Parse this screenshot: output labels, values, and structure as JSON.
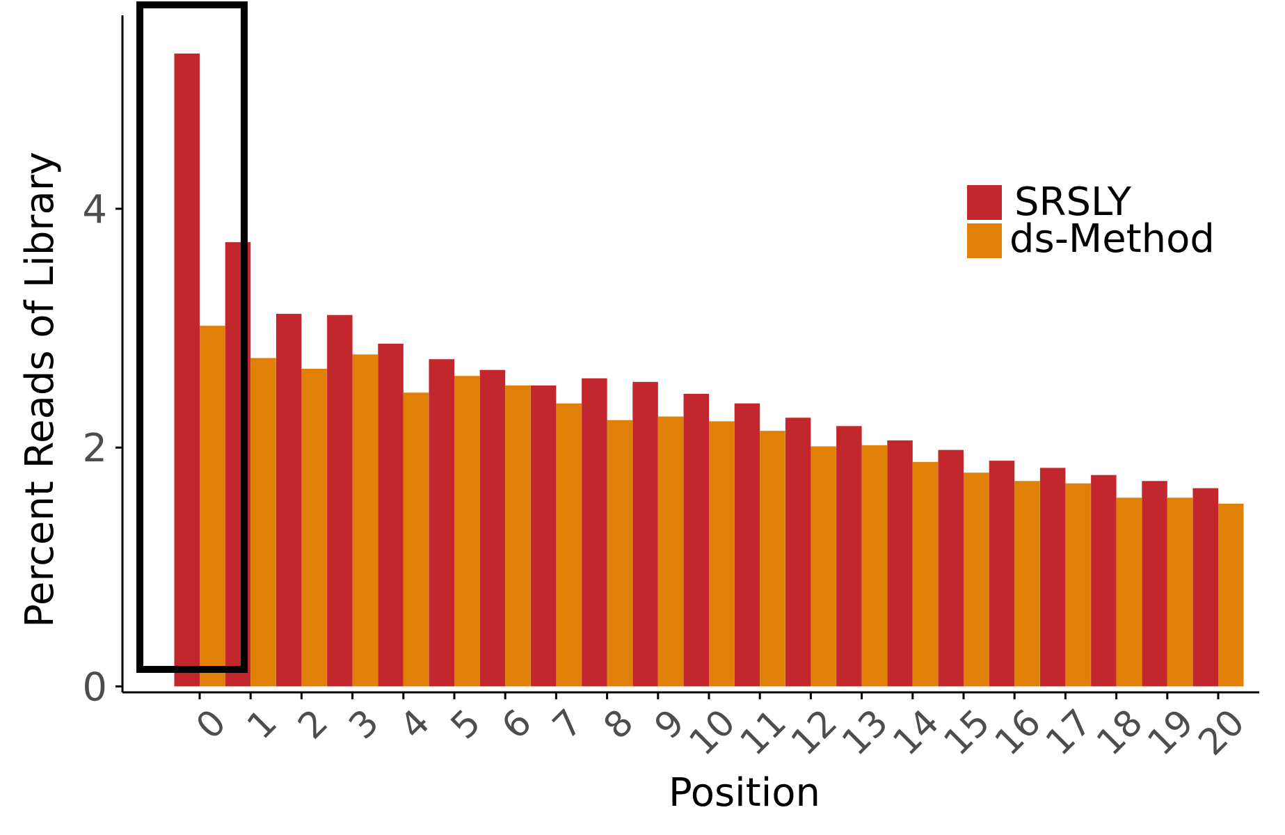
{
  "chart_data": {
    "type": "bar",
    "title": "",
    "xlabel": "Position",
    "ylabel": "Percent Reads of Library",
    "categories": [
      "0",
      "1",
      "2",
      "3",
      "4",
      "5",
      "6",
      "7",
      "8",
      "9",
      "10",
      "11",
      "12",
      "13",
      "14",
      "15",
      "16",
      "17",
      "18",
      "19",
      "20"
    ],
    "series": [
      {
        "name": "SRSLY",
        "color": "#C1272D",
        "values": [
          5.3,
          3.72,
          3.12,
          3.11,
          2.87,
          2.74,
          2.65,
          2.52,
          2.58,
          2.55,
          2.45,
          2.37,
          2.25,
          2.18,
          2.06,
          1.98,
          1.89,
          1.83,
          1.77,
          1.72,
          1.66
        ]
      },
      {
        "name": "ds-Method",
        "color": "#E08006",
        "values": [
          3.02,
          2.75,
          2.66,
          2.78,
          2.46,
          2.6,
          2.52,
          2.37,
          2.23,
          2.26,
          2.22,
          2.14,
          2.01,
          2.02,
          1.88,
          1.79,
          1.72,
          1.7,
          1.58,
          1.58,
          1.53
        ]
      }
    ],
    "yticks": [
      "0",
      "2",
      "4"
    ],
    "ylim": [
      -0.05,
      5.62
    ],
    "legend": "right",
    "grid": false,
    "highlight": {
      "category": "0",
      "style": "black rectangle outline"
    }
  }
}
